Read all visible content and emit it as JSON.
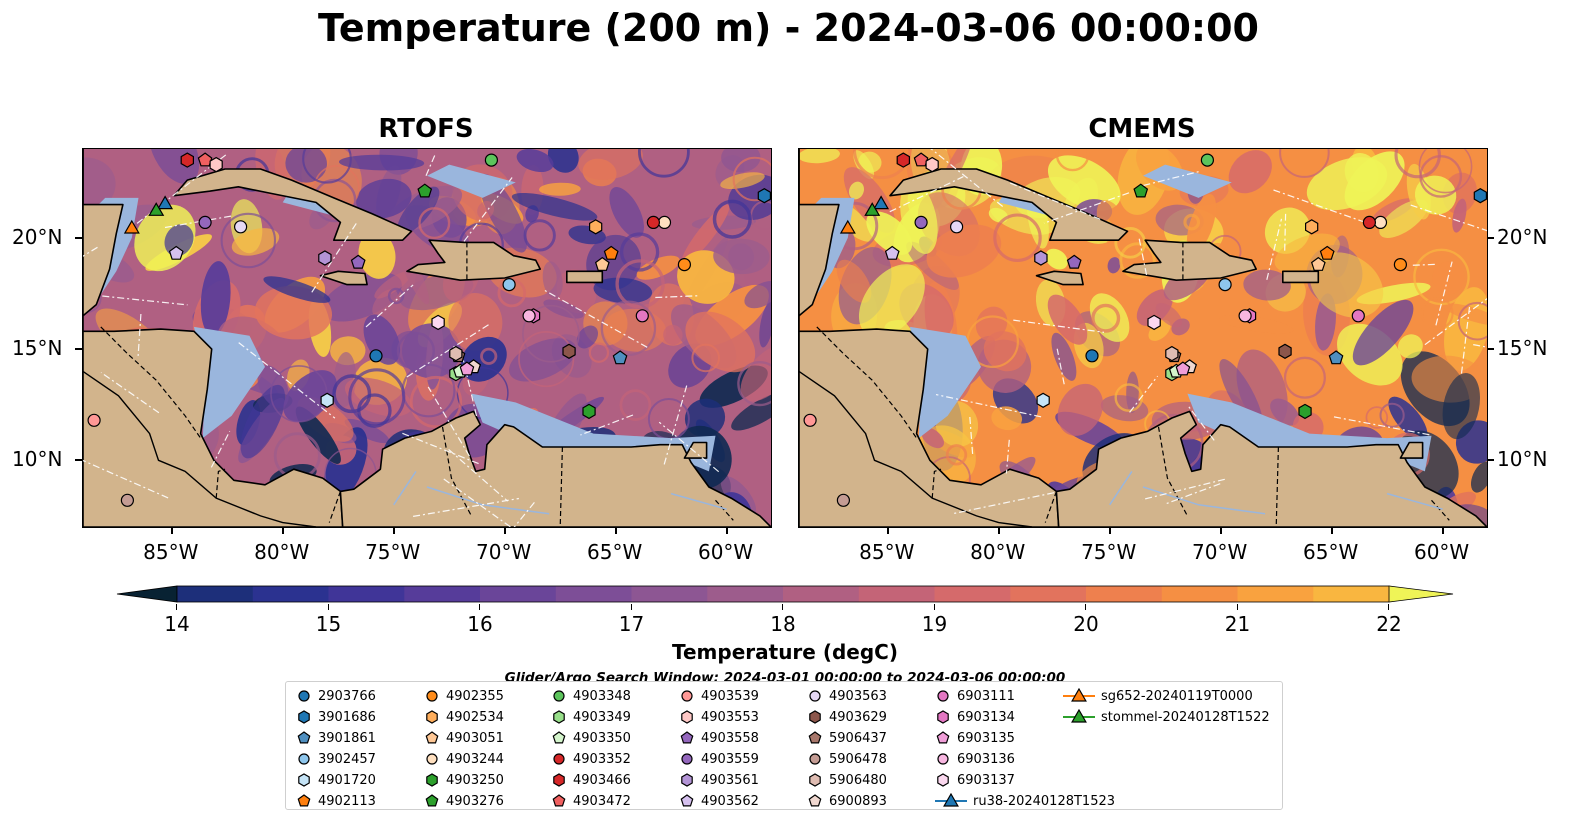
{
  "title": "Temperature (200 m) - 2024-03-06 00:00:00",
  "panels": [
    {
      "id": "rtofs",
      "title": "RTOFS",
      "palette_bias": 0.55,
      "seed": 11
    },
    {
      "id": "cmems",
      "title": "CMEMS",
      "palette_bias": 0.8,
      "seed": 29
    }
  ],
  "axes": {
    "lat_ticks": [
      "20°N",
      "15°N",
      "10°N"
    ],
    "lon_ticks": [
      "85°W",
      "80°W",
      "75°W",
      "70°W",
      "65°W",
      "60°W"
    ],
    "lat_values": [
      20,
      15,
      10
    ],
    "lon_values": [
      -85,
      -80,
      -75,
      -70,
      -65,
      -60
    ],
    "lon_range": [
      -89,
      -58
    ],
    "lat_range": [
      7,
      24
    ]
  },
  "colorbar": {
    "label": "Temperature (degC)",
    "ticks": [
      "14",
      "15",
      "16",
      "17",
      "18",
      "19",
      "20",
      "21",
      "22"
    ],
    "min": 14,
    "max": 22,
    "step": 0.5,
    "extend": "both"
  },
  "colors": {
    "land": "#d2b48c",
    "shelf": "#9ab6dd",
    "deep": "#082233",
    "scale": [
      "#082233",
      "#112a52",
      "#1d2f7a",
      "#2b3290",
      "#403598",
      "#563c9a",
      "#6a4599",
      "#7d4e97",
      "#8d5693",
      "#9d5c8c",
      "#b06082",
      "#c46477",
      "#d56a6b",
      "#e2735d",
      "#ee804e",
      "#f58f43",
      "#f9a23f",
      "#f9b640",
      "#f6cc47",
      "#eff457"
    ]
  },
  "search_window": "Glider/Argo Search Window: 2024-03-01 00:00:00 to 2024-03-06 00:00:00",
  "legend": [
    {
      "label": "2903766",
      "marker": "circle",
      "color": "#1f77b4"
    },
    {
      "label": "3901686",
      "marker": "hexagon",
      "color": "#1f77b4"
    },
    {
      "label": "3901861",
      "marker": "pentagon",
      "color": "#4f8fc0"
    },
    {
      "label": "3902457",
      "marker": "circle",
      "color": "#8ec6ec"
    },
    {
      "label": "4901720",
      "marker": "hexagon",
      "color": "#c5e4f7"
    },
    {
      "label": "4902113",
      "marker": "pentagon",
      "color": "#ff7f0e"
    },
    {
      "label": "4902355",
      "marker": "circle",
      "color": "#ff8c1a"
    },
    {
      "label": "4902534",
      "marker": "hexagon",
      "color": "#ffae5c"
    },
    {
      "label": "4903051",
      "marker": "pentagon",
      "color": "#ffc896"
    },
    {
      "label": "4903244",
      "marker": "circle",
      "color": "#ffe0c0"
    },
    {
      "label": "4903250",
      "marker": "hexagon",
      "color": "#2ca02c"
    },
    {
      "label": "4903276",
      "marker": "pentagon",
      "color": "#2ca02c"
    },
    {
      "label": "4903348",
      "marker": "circle",
      "color": "#5cc45c"
    },
    {
      "label": "4903349",
      "marker": "hexagon",
      "color": "#98df8a"
    },
    {
      "label": "4903350",
      "marker": "pentagon",
      "color": "#d4f5cc"
    },
    {
      "label": "4903352",
      "marker": "circle",
      "color": "#d62728"
    },
    {
      "label": "4903466",
      "marker": "hexagon",
      "color": "#d62728"
    },
    {
      "label": "4903472",
      "marker": "pentagon",
      "color": "#f06060"
    },
    {
      "label": "4903539",
      "marker": "circle",
      "color": "#ff9896"
    },
    {
      "label": "4903553",
      "marker": "hexagon",
      "color": "#ffc8c6"
    },
    {
      "label": "4903558",
      "marker": "pentagon",
      "color": "#9467bd"
    },
    {
      "label": "4903559",
      "marker": "circle",
      "color": "#9467bd"
    },
    {
      "label": "4903561",
      "marker": "hexagon",
      "color": "#b394d6"
    },
    {
      "label": "4903562",
      "marker": "pentagon",
      "color": "#d5c0ee"
    },
    {
      "label": "4903563",
      "marker": "circle",
      "color": "#e6d8f5"
    },
    {
      "label": "4903629",
      "marker": "hexagon",
      "color": "#8c564b"
    },
    {
      "label": "5906437",
      "marker": "pentagon",
      "color": "#a8776b"
    },
    {
      "label": "5906478",
      "marker": "circle",
      "color": "#c49c94"
    },
    {
      "label": "5906480",
      "marker": "hexagon",
      "color": "#dfbcb2"
    },
    {
      "label": "6900893",
      "marker": "pentagon",
      "color": "#f0d8d0"
    },
    {
      "label": "6903111",
      "marker": "circle",
      "color": "#e377c2"
    },
    {
      "label": "6903134",
      "marker": "hexagon",
      "color": "#e377c2"
    },
    {
      "label": "6903135",
      "marker": "pentagon",
      "color": "#f09ed8"
    },
    {
      "label": "6903136",
      "marker": "circle",
      "color": "#f7b6e0"
    },
    {
      "label": "6903137",
      "marker": "hexagon",
      "color": "#fbd8ef"
    },
    {
      "label": "ru38-20240128T1523",
      "marker": "line-triangle",
      "color": "#1f77b4"
    },
    {
      "label": "sg652-20240119T0000",
      "marker": "line-triangle",
      "color": "#ff7f0e"
    },
    {
      "label": "stommel-20240128T1522",
      "marker": "line-triangle",
      "color": "#2ca02c"
    }
  ],
  "markers": [
    {
      "label": "2903766",
      "lon": -75.8,
      "lat": 14.7
    },
    {
      "label": "3901686",
      "lon": -58.3,
      "lat": 21.9
    },
    {
      "label": "3901861",
      "lon": -64.8,
      "lat": 14.6
    },
    {
      "label": "3902457",
      "lon": -69.8,
      "lat": 17.9
    },
    {
      "label": "4901720",
      "lon": -78.0,
      "lat": 12.7
    },
    {
      "label": "4902113",
      "lon": -65.2,
      "lat": 19.3
    },
    {
      "label": "4902355",
      "lon": -61.9,
      "lat": 18.8
    },
    {
      "label": "4902534",
      "lon": -65.9,
      "lat": 20.5
    },
    {
      "label": "4903051",
      "lon": -65.6,
      "lat": 18.8
    },
    {
      "label": "4903244",
      "lon": -62.8,
      "lat": 20.7
    },
    {
      "label": "4903250",
      "lon": -66.2,
      "lat": 12.2
    },
    {
      "label": "4903276",
      "lon": -73.6,
      "lat": 22.1
    },
    {
      "label": "4903348",
      "lon": -70.6,
      "lat": 23.5
    },
    {
      "label": "4903349",
      "lon": -72.2,
      "lat": 13.9
    },
    {
      "label": "4903350",
      "lon": -72.0,
      "lat": 14.0
    },
    {
      "label": "4903352",
      "lon": -63.3,
      "lat": 20.7
    },
    {
      "label": "4903466",
      "lon": -84.3,
      "lat": 23.5
    },
    {
      "label": "4903472",
      "lon": -83.5,
      "lat": 23.5
    },
    {
      "label": "4903539",
      "lon": -88.5,
      "lat": 11.8
    },
    {
      "label": "4903553",
      "lon": -83.0,
      "lat": 23.3
    },
    {
      "label": "4903558",
      "lon": -76.6,
      "lat": 18.9
    },
    {
      "label": "4903559",
      "lon": -83.5,
      "lat": 20.7
    },
    {
      "label": "4903561",
      "lon": -78.1,
      "lat": 19.1
    },
    {
      "label": "4903562",
      "lon": -84.8,
      "lat": 19.3
    },
    {
      "label": "4903563",
      "lon": -81.9,
      "lat": 20.5
    },
    {
      "label": "4903629",
      "lon": -67.1,
      "lat": 14.9
    },
    {
      "label": "5906437",
      "lon": -72.1,
      "lat": 14.7
    },
    {
      "label": "5906478",
      "lon": -87.0,
      "lat": 8.2
    },
    {
      "label": "5906480",
      "lon": -72.2,
      "lat": 14.8
    },
    {
      "label": "6900893",
      "lon": -71.4,
      "lat": 14.2
    },
    {
      "label": "6903111",
      "lon": -63.8,
      "lat": 16.5
    },
    {
      "label": "6903134",
      "lon": -68.7,
      "lat": 16.5
    },
    {
      "label": "6903135",
      "lon": -71.7,
      "lat": 14.1
    },
    {
      "label": "6903136",
      "lon": -68.9,
      "lat": 16.5
    },
    {
      "label": "6903137",
      "lon": -73.0,
      "lat": 16.2
    },
    {
      "label": "ru38-20240128T1523",
      "lon": -85.3,
      "lat": 21.5
    },
    {
      "label": "sg652-20240119T0000",
      "lon": -86.8,
      "lat": 20.4
    },
    {
      "label": "stommel-20240128T1522",
      "lon": -85.7,
      "lat": 21.2
    }
  ]
}
